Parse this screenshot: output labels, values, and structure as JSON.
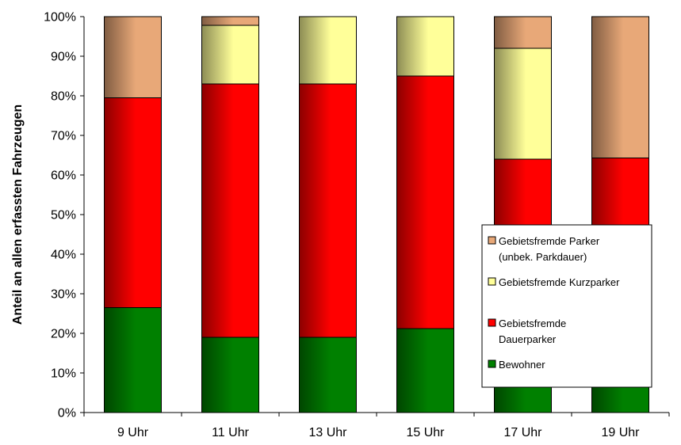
{
  "chart_data": {
    "type": "bar",
    "stacked": true,
    "percent_stacked": true,
    "categories": [
      "9 Uhr",
      "11 Uhr",
      "13 Uhr",
      "15 Uhr",
      "17 Uhr",
      "19 Uhr"
    ],
    "series": [
      {
        "name": "Bewohner",
        "values": [
          26.5,
          19,
          19,
          21.2,
          10,
          32.3
        ],
        "color": "#008000"
      },
      {
        "name": "Gebietsfremde Dauerparker",
        "values": [
          53,
          64,
          64,
          63.8,
          54,
          32
        ],
        "color": "#ff0000"
      },
      {
        "name": "Gebietsfremde Kurzparker",
        "values": [
          0,
          14.8,
          17,
          15,
          28,
          0
        ],
        "color": "#ffff99"
      },
      {
        "name": "Gebietsfremde Parker (unbek. Parkdauer)",
        "values": [
          20.5,
          2.2,
          0,
          0,
          8,
          35.7
        ],
        "color": "#e8a878"
      }
    ],
    "ylabel": "Anteil an allen erfassten Fahrzeugen",
    "xlabel": "",
    "ylim": [
      0,
      100
    ],
    "yticks": [
      "0%",
      "10%",
      "20%",
      "30%",
      "40%",
      "50%",
      "60%",
      "70%",
      "80%",
      "90%",
      "100%"
    ],
    "grid": false,
    "legend": {
      "placement": "right",
      "order": [
        {
          "series_index": 3,
          "lines": [
            "Gebietsfremde Parker",
            "(unbek. Parkdauer)"
          ]
        },
        {
          "series_index": 2,
          "lines": [
            "Gebietsfremde Kurzparker"
          ]
        },
        {
          "series_index": 1,
          "lines": [
            "Gebietsfremde",
            "Dauerparker"
          ]
        },
        {
          "series_index": 0,
          "lines": [
            "Bewohner"
          ]
        }
      ]
    }
  }
}
